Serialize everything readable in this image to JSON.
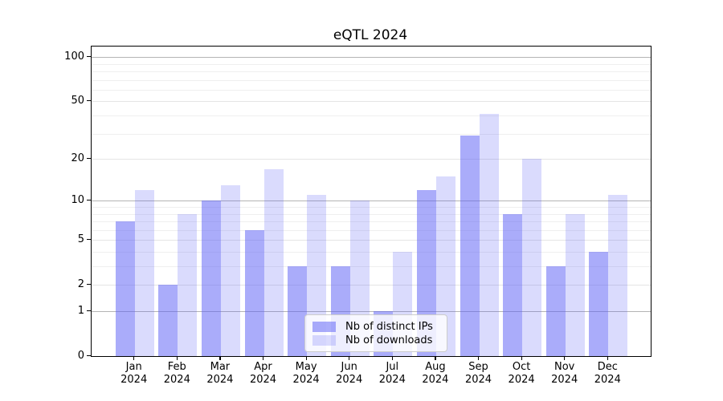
{
  "chart_data": {
    "type": "bar",
    "title": "eQTL 2024",
    "categories": [
      "Jan 2024",
      "Feb 2024",
      "Mar 2024",
      "Apr 2024",
      "May 2024",
      "Jun 2024",
      "Jul 2024",
      "Aug 2024",
      "Sep 2024",
      "Oct 2024",
      "Nov 2024",
      "Dec 2024"
    ],
    "month_labels": [
      "Jan",
      "Feb",
      "Mar",
      "Apr",
      "May",
      "Jun",
      "Jul",
      "Aug",
      "Sep",
      "Oct",
      "Nov",
      "Dec"
    ],
    "year_label": "2024",
    "series": [
      {
        "name": "Nb of distinct IPs",
        "color": "rgba(85,90,245,0.5)",
        "values": [
          7,
          2,
          10,
          6,
          3,
          3,
          1,
          12,
          29,
          8,
          3,
          4
        ]
      },
      {
        "name": "Nb of downloads",
        "color": "rgba(85,90,245,0.22)",
        "values": [
          12,
          8,
          13,
          17,
          11,
          10,
          4,
          15,
          41,
          20,
          8,
          11
        ]
      }
    ],
    "yscale": "log1p",
    "ylim": [
      0,
      118
    ],
    "yticks": [
      0,
      1,
      2,
      5,
      10,
      20,
      50,
      100
    ],
    "ytick_majors": [
      1,
      10,
      100
    ],
    "ytick_minors": [
      3,
      4,
      6,
      7,
      8,
      9,
      30,
      40,
      60,
      70,
      80,
      90
    ],
    "grid": true,
    "legend_position": "lower center"
  }
}
